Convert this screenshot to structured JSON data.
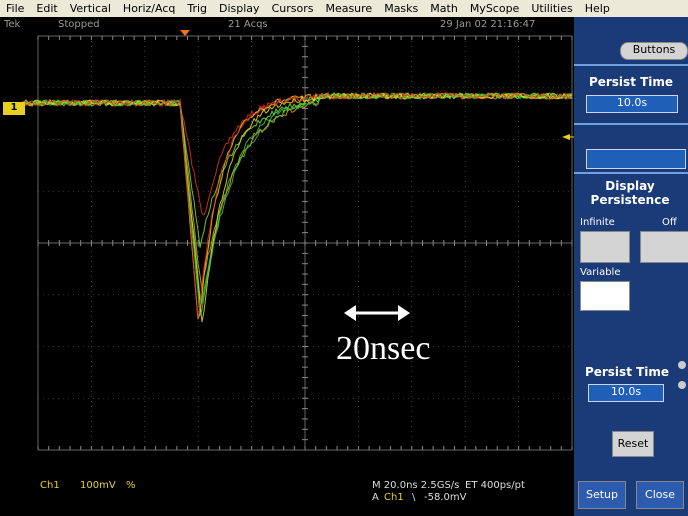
{
  "menu": [
    "File",
    "Edit",
    "Vertical",
    "Horiz/Acq",
    "Trig",
    "Display",
    "Cursors",
    "Measure",
    "Masks",
    "Math",
    "MyScope",
    "Utilities",
    "Help"
  ],
  "status": {
    "brand": "Tek",
    "state": "Stopped",
    "acquisitions": "21 Acqs",
    "timestamp": "29 Jan 02 21:16:47"
  },
  "channel_marker": "1",
  "annotation": "20nsec",
  "readout": {
    "channel": "Ch1",
    "scale": "100mV",
    "coupling": "%",
    "timebase": "M 20.0ns 2.5GS/s",
    "record": "ET 400ps/pt",
    "trigger_source": "A",
    "trigger_channel": "Ch1",
    "trigger_slope": "\\",
    "trigger_level": "-58.0mV"
  },
  "panel": {
    "buttons": "Buttons",
    "persist_time_title": "Persist Time",
    "persist_time_value": "10.0s",
    "section_title": "Display Persistence",
    "infinite": "Infinite",
    "off": "Off",
    "variable": "Variable",
    "persist_time_label": "Persist Time",
    "persist_time_value_2": "10.0s",
    "reset": "Reset",
    "setup": "Setup",
    "close": "Close"
  }
}
